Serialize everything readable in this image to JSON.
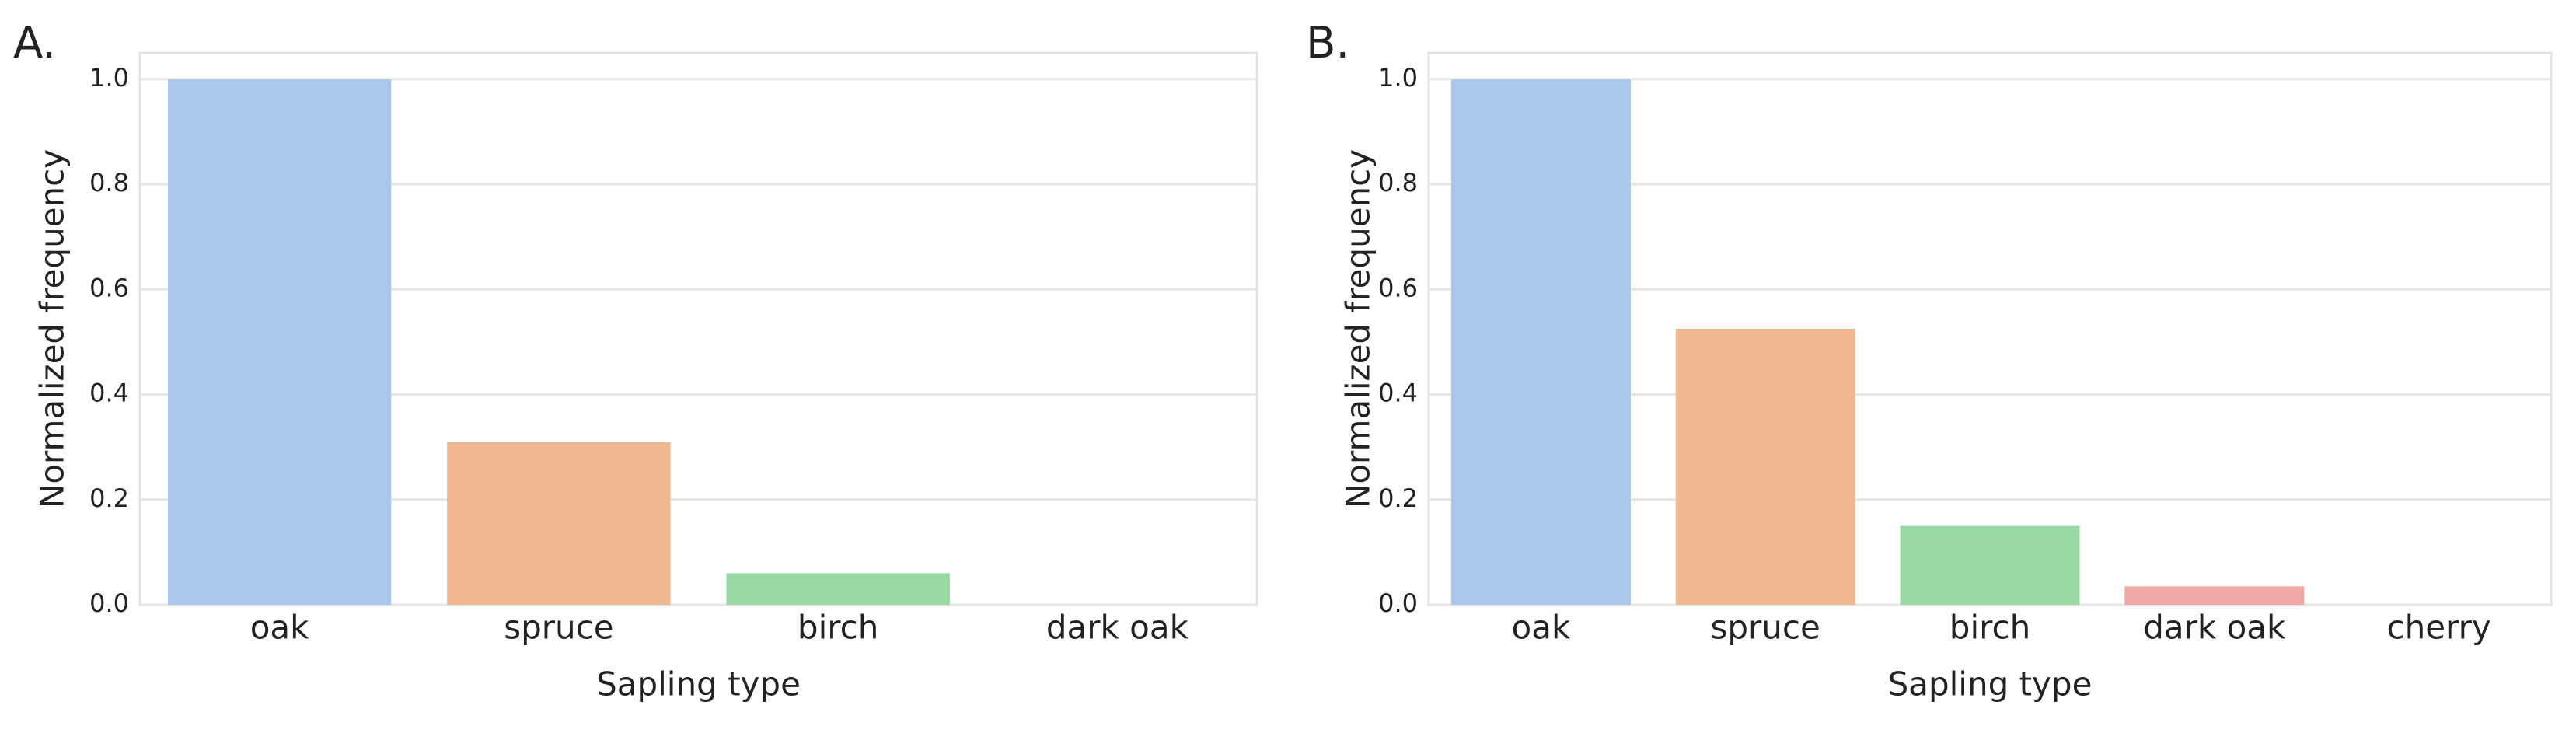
{
  "chart_data": [
    {
      "type": "bar",
      "label": "A.",
      "xlabel": "Sapling type",
      "ylabel": "Normalized frequency",
      "categories": [
        "oak",
        "spruce",
        "birch",
        "dark oak"
      ],
      "values": [
        1.0,
        0.31,
        0.06,
        0
      ],
      "colors": [
        "#abc8ec",
        "#f0b891",
        "#98d9a5",
        "#f0a8a6"
      ],
      "ylim": [
        0,
        1.05
      ],
      "yticks": [
        {
          "value": 0,
          "label": "0.0"
        },
        0.2,
        0.4,
        0.6,
        0.8,
        {
          "value": 1,
          "label": "1.0"
        }
      ],
      "grid": true
    },
    {
      "type": "bar",
      "label": "B.",
      "xlabel": "Sapling type",
      "ylabel": "Normalized frequency",
      "categories": [
        "oak",
        "spruce",
        "birch",
        "dark oak",
        "cherry"
      ],
      "values": [
        1.0,
        0.525,
        0.15,
        0.035,
        0
      ],
      "colors": [
        "#abc8ec",
        "#f0b891",
        "#98d9a5",
        "#f0a8a6",
        "#c9b3dd"
      ],
      "ylim": [
        0,
        1.05
      ],
      "yticks": [
        {
          "value": 0,
          "label": "0.0"
        },
        0.2,
        0.4,
        0.6,
        0.8,
        {
          "value": 1,
          "label": "1.0"
        }
      ],
      "grid": true
    }
  ]
}
